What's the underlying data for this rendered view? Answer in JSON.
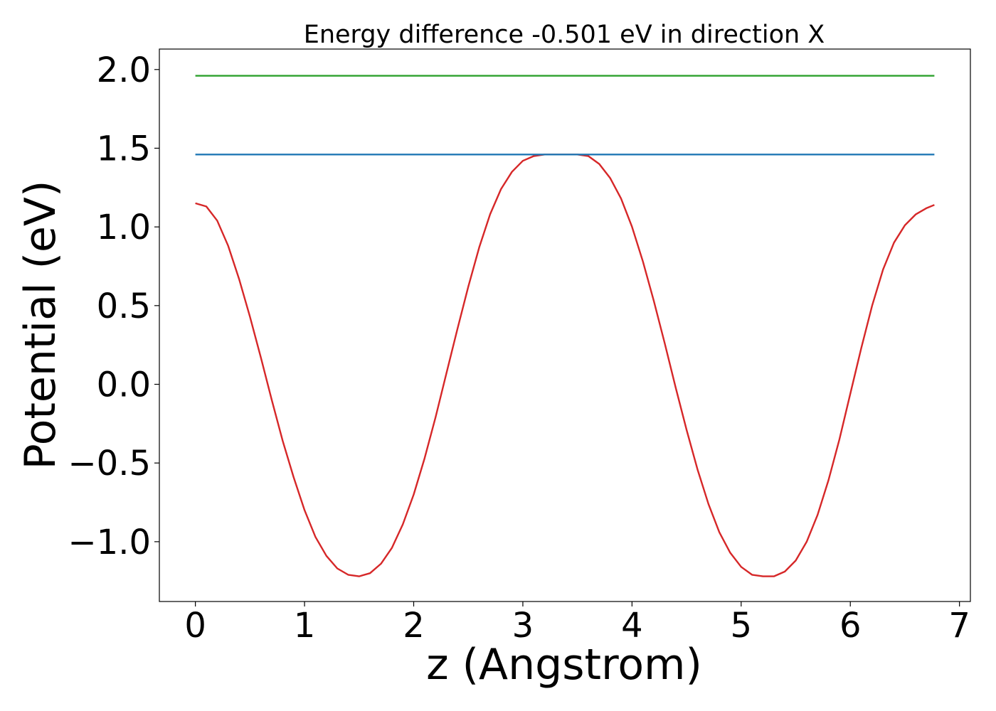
{
  "chart_data": {
    "type": "line",
    "title": "Energy difference -0.501 eV in direction X",
    "xlabel": "z (Angstrom)",
    "ylabel": "Potential (eV)",
    "xlim": [
      -0.33,
      7.1
    ],
    "ylim": [
      -1.38,
      2.13
    ],
    "grid": false,
    "x_ticks": [
      {
        "value": 0,
        "label": "0"
      },
      {
        "value": 1,
        "label": "1"
      },
      {
        "value": 2,
        "label": "2"
      },
      {
        "value": 3,
        "label": "3"
      },
      {
        "value": 4,
        "label": "4"
      },
      {
        "value": 5,
        "label": "5"
      },
      {
        "value": 6,
        "label": "6"
      },
      {
        "value": 7,
        "label": "7"
      }
    ],
    "y_ticks": [
      {
        "value": -1.0,
        "label": "−1.0"
      },
      {
        "value": -0.5,
        "label": "−0.5"
      },
      {
        "value": 0.0,
        "label": "0.0"
      },
      {
        "value": 0.5,
        "label": "0.5"
      },
      {
        "value": 1.0,
        "label": "1.0"
      },
      {
        "value": 1.5,
        "label": "1.5"
      },
      {
        "value": 2.0,
        "label": "2.0"
      }
    ],
    "series": [
      {
        "color": "#d62728",
        "x": [
          0.0,
          0.1,
          0.2,
          0.3,
          0.4,
          0.5,
          0.6,
          0.7,
          0.8,
          0.9,
          1.0,
          1.1,
          1.2,
          1.3,
          1.4,
          1.5,
          1.6,
          1.7,
          1.8,
          1.9,
          2.0,
          2.1,
          2.2,
          2.3,
          2.4,
          2.5,
          2.6,
          2.7,
          2.8,
          2.9,
          3.0,
          3.1,
          3.2,
          3.3,
          3.4,
          3.5,
          3.6,
          3.7,
          3.8,
          3.9,
          4.0,
          4.1,
          4.2,
          4.3,
          4.4,
          4.5,
          4.6,
          4.7,
          4.8,
          4.9,
          5.0,
          5.1,
          5.2,
          5.3,
          5.4,
          5.5,
          5.6,
          5.7,
          5.8,
          5.9,
          6.0,
          6.1,
          6.2,
          6.3,
          6.4,
          6.5,
          6.6,
          6.7,
          6.77
        ],
        "y": [
          1.15,
          1.13,
          1.04,
          0.88,
          0.67,
          0.43,
          0.17,
          -0.1,
          -0.36,
          -0.59,
          -0.8,
          -0.97,
          -1.09,
          -1.17,
          -1.21,
          -1.22,
          -1.2,
          -1.14,
          -1.04,
          -0.89,
          -0.7,
          -0.47,
          -0.21,
          0.07,
          0.35,
          0.62,
          0.87,
          1.08,
          1.24,
          1.35,
          1.42,
          1.45,
          1.46,
          1.46,
          1.46,
          1.46,
          1.45,
          1.4,
          1.31,
          1.18,
          1.0,
          0.78,
          0.53,
          0.26,
          -0.02,
          -0.29,
          -0.54,
          -0.76,
          -0.94,
          -1.07,
          -1.16,
          -1.21,
          -1.22,
          -1.22,
          -1.19,
          -1.12,
          -1.0,
          -0.83,
          -0.61,
          -0.35,
          -0.06,
          0.23,
          0.5,
          0.73,
          0.9,
          1.01,
          1.08,
          1.12,
          1.14
        ]
      },
      {
        "color": "#1f77b4",
        "x": [
          0.0,
          6.77
        ],
        "y": [
          1.46,
          1.46
        ]
      },
      {
        "color": "#2ca02c",
        "x": [
          0.0,
          6.77
        ],
        "y": [
          1.96,
          1.96
        ]
      }
    ]
  }
}
